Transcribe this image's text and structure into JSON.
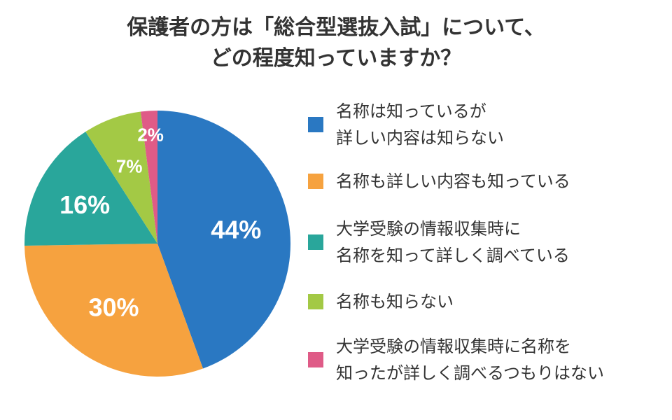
{
  "title": {
    "line1": "保護者の方は「総合型選抜入試」について、",
    "line2": "どの程度知っていますか？"
  },
  "chart_data": {
    "type": "pie",
    "title": "保護者の方は「総合型選抜入試」について、どの程度知っていますか？",
    "slices": [
      {
        "label": "名称は知っているが詳しい内容は知らない",
        "label_lines": [
          "名称は知っているが",
          "詳しい内容は知らない"
        ],
        "value": 44,
        "display": "44%",
        "color": "#2a78c2"
      },
      {
        "label": "名称も詳しい内容も知っている",
        "label_lines": [
          "名称も詳しい内容も知っている"
        ],
        "value": 30,
        "display": "30%",
        "color": "#f6a23f"
      },
      {
        "label": "大学受験の情報収集時に名称を知って詳しく調べている",
        "label_lines": [
          "大学受験の情報収集時に",
          "名称を知って詳しく調べている"
        ],
        "value": 16,
        "display": "16%",
        "color": "#29a69b"
      },
      {
        "label": "名称も知らない",
        "label_lines": [
          "名称も知らない"
        ],
        "value": 7,
        "display": "7%",
        "color": "#a3c945"
      },
      {
        "label": "大学受験の情報収集時に名称を知ったが詳しく調べるつもりはない",
        "label_lines": [
          "大学受験の情報収集時に名称を",
          "知ったが詳しく調べるつもりはない"
        ],
        "value": 2,
        "display": "2%",
        "color": "#df5b87"
      }
    ],
    "start_angle": "12 o'clock",
    "direction": "clockwise",
    "legend_placement": "right"
  }
}
